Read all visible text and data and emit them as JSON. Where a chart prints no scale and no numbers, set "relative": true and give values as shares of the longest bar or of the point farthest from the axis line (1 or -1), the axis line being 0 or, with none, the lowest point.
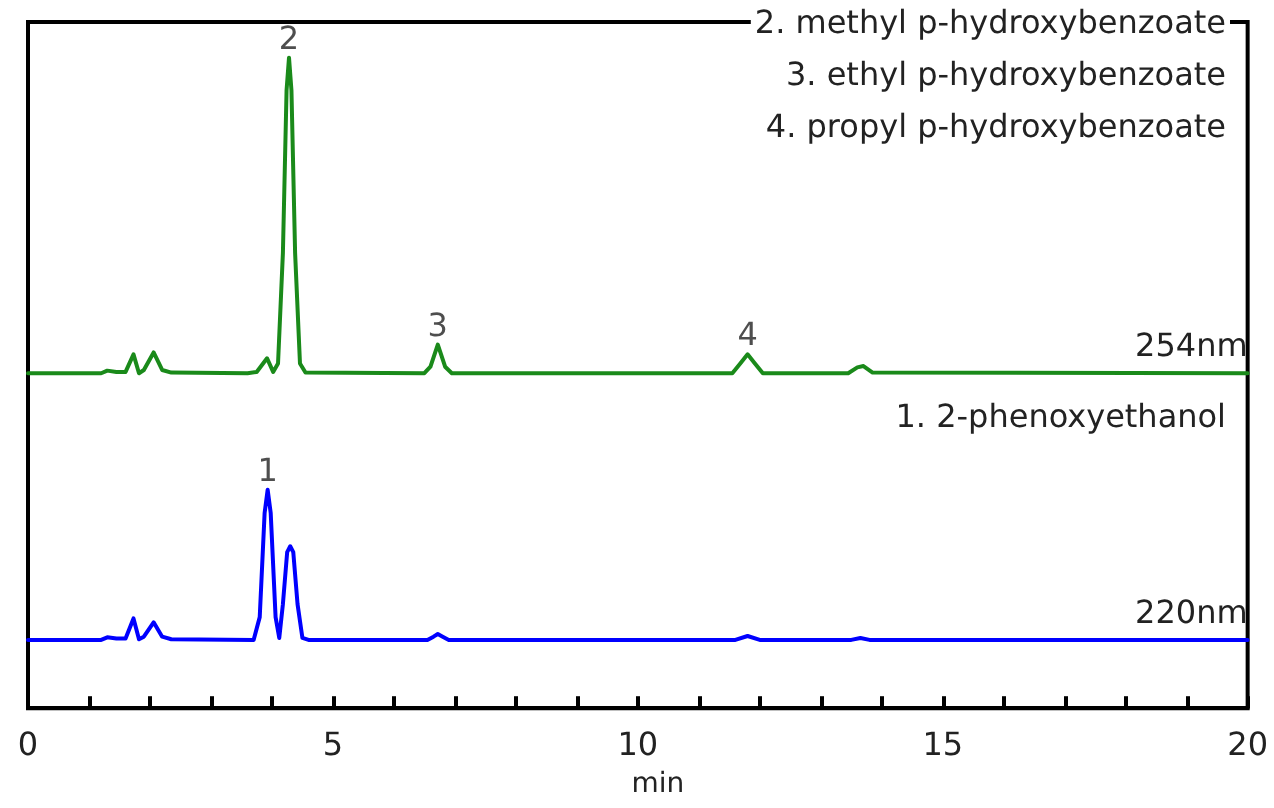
{
  "chart_data": {
    "type": "line",
    "relative": true,
    "xlabel": "min",
    "xlim": [
      0,
      20
    ],
    "xticks": [
      0,
      {
        "value": 1,
        "label": null
      },
      {
        "value": 2,
        "label": null
      },
      {
        "value": 3,
        "label": null
      },
      {
        "value": 4,
        "label": null
      },
      5,
      {
        "value": 6,
        "label": null
      },
      {
        "value": 7,
        "label": null
      },
      {
        "value": 8,
        "label": null
      },
      {
        "value": 9,
        "label": null
      },
      10,
      {
        "value": 11,
        "label": null
      },
      {
        "value": 12,
        "label": null
      },
      {
        "value": 13,
        "label": null
      },
      {
        "value": 14,
        "label": null
      },
      15,
      {
        "value": 16,
        "label": null
      },
      {
        "value": 17,
        "label": null
      },
      {
        "value": 18,
        "label": null
      },
      {
        "value": 19,
        "label": null
      },
      20
    ],
    "grid": false,
    "legend": false,
    "marker": "none",
    "line_style": "solid",
    "series": [
      {
        "name": "254nm",
        "color": "#1a8a1a",
        "x": [
          0,
          1.2,
          1.3,
          1.45,
          1.6,
          1.73,
          1.82,
          1.9,
          2.06,
          2.2,
          2.35,
          3.6,
          3.75,
          3.92,
          4.02,
          4.1,
          4.18,
          4.24,
          4.28,
          4.32,
          4.38,
          4.46,
          4.55,
          6.5,
          6.6,
          6.72,
          6.84,
          6.95,
          11.55,
          11.68,
          11.8,
          11.92,
          12.05,
          13.45,
          13.6,
          13.7,
          13.85,
          20
        ],
        "values": [
          0.515,
          0.515,
          0.519,
          0.517,
          0.517,
          0.544,
          0.515,
          0.52,
          0.547,
          0.52,
          0.516,
          0.515,
          0.517,
          0.538,
          0.517,
          0.53,
          0.7,
          0.95,
          1,
          0.95,
          0.7,
          0.53,
          0.516,
          0.515,
          0.525,
          0.559,
          0.525,
          0.515,
          0.515,
          0.53,
          0.544,
          0.53,
          0.515,
          0.515,
          0.524,
          0.526,
          0.516,
          0.515
        ]
      },
      {
        "name": "220nm",
        "color": "#0000ff",
        "x": [
          0,
          1.2,
          1.3,
          1.45,
          1.6,
          1.73,
          1.82,
          1.9,
          2.06,
          2.2,
          2.35,
          3.7,
          3.8,
          3.88,
          3.93,
          3.98,
          4.06,
          4.12,
          4.18,
          4.25,
          4.3,
          4.35,
          4.42,
          4.5,
          4.6,
          6.55,
          6.65,
          6.72,
          6.8,
          6.9,
          11.6,
          11.8,
          12.0,
          13.5,
          13.65,
          13.8,
          20
        ],
        "values": [
          0.105,
          0.105,
          0.109,
          0.107,
          0.107,
          0.138,
          0.106,
          0.11,
          0.132,
          0.11,
          0.106,
          0.105,
          0.14,
          0.3,
          0.336,
          0.3,
          0.14,
          0.108,
          0.16,
          0.24,
          0.249,
          0.24,
          0.16,
          0.108,
          0.105,
          0.105,
          0.11,
          0.114,
          0.11,
          0.105,
          0.105,
          0.111,
          0.105,
          0.105,
          0.108,
          0.105,
          0.105
        ]
      }
    ],
    "annotations": [
      {
        "text": "2",
        "x": 4.28,
        "y": 1
      },
      {
        "text": "1",
        "x": 3.93,
        "y": 0.336
      },
      {
        "text": "3",
        "x": 6.72,
        "y": 0.559
      },
      {
        "text": "4",
        "x": 11.8,
        "y": 0.544
      },
      "2. methyl p-hydroxybenzoate",
      "3. ethyl p-hydroxybenzoate",
      "4. propyl p-hydroxybenzoate",
      "1. 2-phenoxyethanol"
    ]
  }
}
